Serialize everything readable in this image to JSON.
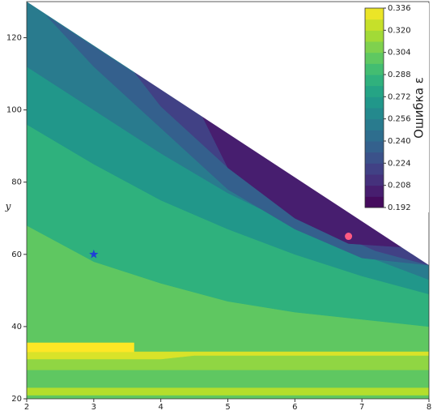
{
  "chart_data": {
    "type": "contour",
    "xlim": [
      2,
      8
    ],
    "ylim": [
      20,
      130
    ],
    "xticks": [
      2,
      3,
      4,
      5,
      6,
      7,
      8
    ],
    "yticks": [
      20,
      40,
      60,
      80,
      100,
      120
    ],
    "ylabel": "y",
    "colorbar": {
      "label": "Ошибка ε",
      "lim": [
        0.192,
        0.336
      ],
      "ticks": [
        0.192,
        0.208,
        0.224,
        {
          "value": 0.24,
          "label": "0.240"
        },
        0.256,
        0.272,
        0.288,
        0.304,
        {
          "value": 0.32,
          "label": "0.320"
        },
        0.336
      ]
    },
    "regions": [
      {
        "level": 0.3,
        "x": [
          2,
          8,
          8,
          2
        ],
        "y": [
          20,
          20,
          57,
          130
        ]
      },
      {
        "level": 0.284,
        "x": [
          2,
          8,
          8,
          7,
          6,
          5,
          4,
          3,
          2
        ],
        "y": [
          130,
          57,
          40,
          42,
          44,
          47,
          52,
          58,
          68
        ]
      },
      {
        "level": 0.268,
        "x": [
          2,
          8,
          8,
          7,
          6,
          5,
          4,
          3,
          2
        ],
        "y": [
          130,
          57,
          49,
          54,
          60,
          67,
          75,
          85,
          96
        ]
      },
      {
        "level": 0.252,
        "x": [
          2,
          8,
          8,
          7,
          6,
          5,
          4,
          3,
          2
        ],
        "y": [
          130,
          57,
          53,
          60,
          68,
          77,
          88,
          100,
          112
        ]
      },
      {
        "level": 0.236,
        "x": [
          2.3,
          8,
          7,
          6,
          5,
          4,
          3
        ],
        "y": [
          126,
          57,
          59,
          67,
          78,
          95,
          112
        ]
      },
      {
        "level": 0.22,
        "x": [
          3.5,
          8,
          7.2,
          6,
          5,
          4
        ],
        "y": [
          113,
          57,
          61,
          71,
          84,
          101
        ]
      },
      {
        "level": 0.204,
        "x": [
          4.6,
          7.6,
          6.8,
          6,
          5
        ],
        "y": [
          99,
          62,
          63,
          70,
          84
        ]
      },
      {
        "level": 0.312,
        "x": [
          2,
          8,
          8,
          2
        ],
        "y": [
          28,
          28,
          33,
          33
        ]
      },
      {
        "level": 0.328,
        "x": [
          2,
          4,
          4.5,
          8,
          8,
          2
        ],
        "y": [
          31,
          31,
          32,
          32,
          33,
          33
        ]
      },
      {
        "level": 0.336,
        "x": [
          2,
          3.6,
          3.6,
          2
        ],
        "y": [
          33,
          33,
          35.5,
          35.5
        ]
      },
      {
        "level": 0.32,
        "x": [
          2,
          8,
          8,
          2
        ],
        "y": [
          21,
          21,
          23,
          23
        ]
      }
    ],
    "markers": [
      {
        "x": 3,
        "y": 60,
        "color": "#1f3fd6",
        "marker": "star"
      },
      {
        "x": 6.8,
        "y": 65,
        "color": "#ff5a82",
        "marker": "circle"
      }
    ]
  }
}
